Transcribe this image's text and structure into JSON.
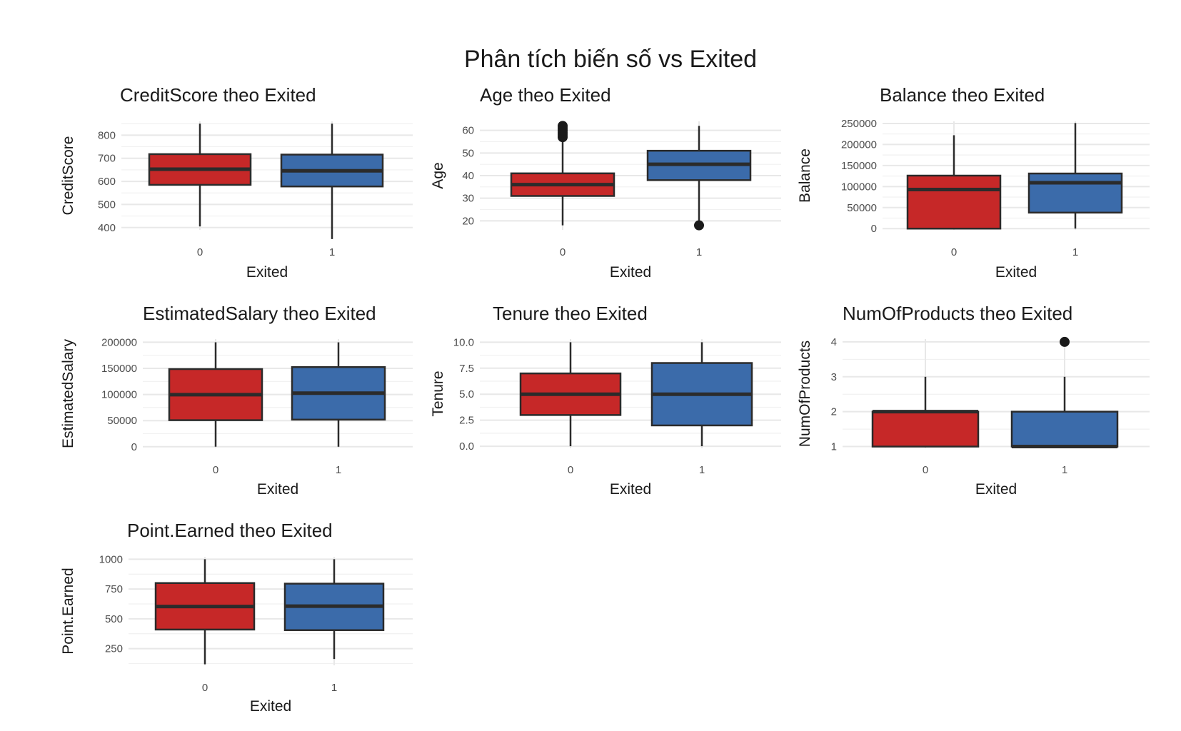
{
  "figure": {
    "title": "Phân tích biến số vs Exited"
  },
  "colors": {
    "exited_0": "#C62828",
    "exited_1": "#3B6BAA",
    "box_line": "#2b2b2b",
    "grid": "#e8e8e8",
    "outlier": "#1a1a1a"
  },
  "chart_data": [
    {
      "type": "boxplot",
      "title": "CreditScore theo Exited",
      "xlabel": "Exited",
      "ylabel": "CreditScore",
      "categories": [
        "0",
        "1"
      ],
      "ylim": [
        390,
        860
      ],
      "yticks": [
        400,
        500,
        600,
        700,
        800
      ],
      "boxes": [
        {
          "group": "0",
          "min": 405,
          "q1": 585,
          "median": 653,
          "q3": 718,
          "max": 850,
          "outliers": []
        },
        {
          "group": "1",
          "min": 350,
          "q1": 578,
          "median": 646,
          "q3": 716,
          "max": 850,
          "outliers": []
        }
      ]
    },
    {
      "type": "boxplot",
      "title": "Age theo Exited",
      "xlabel": "Exited",
      "ylabel": "Age",
      "categories": [
        "0",
        "1"
      ],
      "ylim": [
        16,
        64
      ],
      "yticks": [
        20,
        30,
        40,
        50,
        60
      ],
      "boxes": [
        {
          "group": "0",
          "min": 18,
          "q1": 31,
          "median": 36,
          "q3": 41,
          "max": 56,
          "outliers": [
            57,
            58,
            59,
            60,
            61,
            62
          ]
        },
        {
          "group": "1",
          "min": 20,
          "q1": 38,
          "median": 45,
          "q3": 51,
          "max": 62,
          "outliers": [
            18
          ]
        }
      ]
    },
    {
      "type": "boxplot",
      "title": "Balance theo Exited",
      "xlabel": "Exited",
      "ylabel": "Balance",
      "categories": [
        "0",
        "1"
      ],
      "ylim": [
        -3000,
        255000
      ],
      "yticks": [
        0,
        50000,
        100000,
        150000,
        200000,
        250000
      ],
      "boxes": [
        {
          "group": "0",
          "min": 0,
          "q1": 0,
          "median": 93000,
          "q3": 126000,
          "max": 222000,
          "outliers": []
        },
        {
          "group": "1",
          "min": 0,
          "q1": 38000,
          "median": 109000,
          "q3": 131000,
          "max": 251000,
          "outliers": []
        }
      ]
    },
    {
      "type": "boxplot",
      "title": "EstimatedSalary theo Exited",
      "xlabel": "Exited",
      "ylabel": "EstimatedSalary",
      "categories": [
        "0",
        "1"
      ],
      "ylim": [
        -3000,
        206000
      ],
      "yticks": [
        0,
        50000,
        100000,
        150000,
        200000
      ],
      "boxes": [
        {
          "group": "0",
          "min": 90,
          "q1": 50800,
          "median": 99600,
          "q3": 148600,
          "max": 199900,
          "outliers": []
        },
        {
          "group": "1",
          "min": 12,
          "q1": 51900,
          "median": 102500,
          "q3": 152400,
          "max": 199800,
          "outliers": []
        }
      ]
    },
    {
      "type": "boxplot",
      "title": "Tenure theo Exited",
      "xlabel": "Exited",
      "ylabel": "Tenure",
      "categories": [
        "0",
        "1"
      ],
      "ylim": [
        -0.2,
        10.3
      ],
      "yticks": [
        0.0,
        2.5,
        5.0,
        7.5,
        10.0
      ],
      "tick_labels": [
        "0.0",
        "2.5",
        "5.0",
        "7.5",
        "10.0"
      ],
      "boxes": [
        {
          "group": "0",
          "min": 0,
          "q1": 3,
          "median": 5,
          "q3": 7,
          "max": 10,
          "outliers": []
        },
        {
          "group": "1",
          "min": 0,
          "q1": 2,
          "median": 5,
          "q3": 8,
          "max": 10,
          "outliers": []
        }
      ]
    },
    {
      "type": "boxplot",
      "title": "NumOfProducts theo Exited",
      "xlabel": "Exited",
      "ylabel": "NumOfProducts",
      "categories": [
        "0",
        "1"
      ],
      "ylim": [
        0.95,
        4.08
      ],
      "yticks": [
        1,
        2,
        3,
        4
      ],
      "boxes": [
        {
          "group": "0",
          "min": 1,
          "q1": 1,
          "median": 2,
          "q3": 2,
          "max": 3,
          "outliers": []
        },
        {
          "group": "1",
          "min": 1,
          "q1": 1,
          "median": 1,
          "q3": 2,
          "max": 3,
          "outliers": [
            4
          ]
        }
      ]
    },
    {
      "type": "boxplot",
      "title": "Point.Earned theo Exited",
      "xlabel": "Exited",
      "ylabel": "Point.Earned",
      "categories": [
        "0",
        "1"
      ],
      "ylim": [
        110,
        1020
      ],
      "yticks": [
        250,
        500,
        750,
        1000
      ],
      "boxes": [
        {
          "group": "0",
          "min": 119,
          "q1": 410,
          "median": 603,
          "q3": 800,
          "max": 1000,
          "outliers": []
        },
        {
          "group": "1",
          "min": 163,
          "q1": 405,
          "median": 606,
          "q3": 795,
          "max": 1000,
          "outliers": []
        }
      ]
    }
  ]
}
